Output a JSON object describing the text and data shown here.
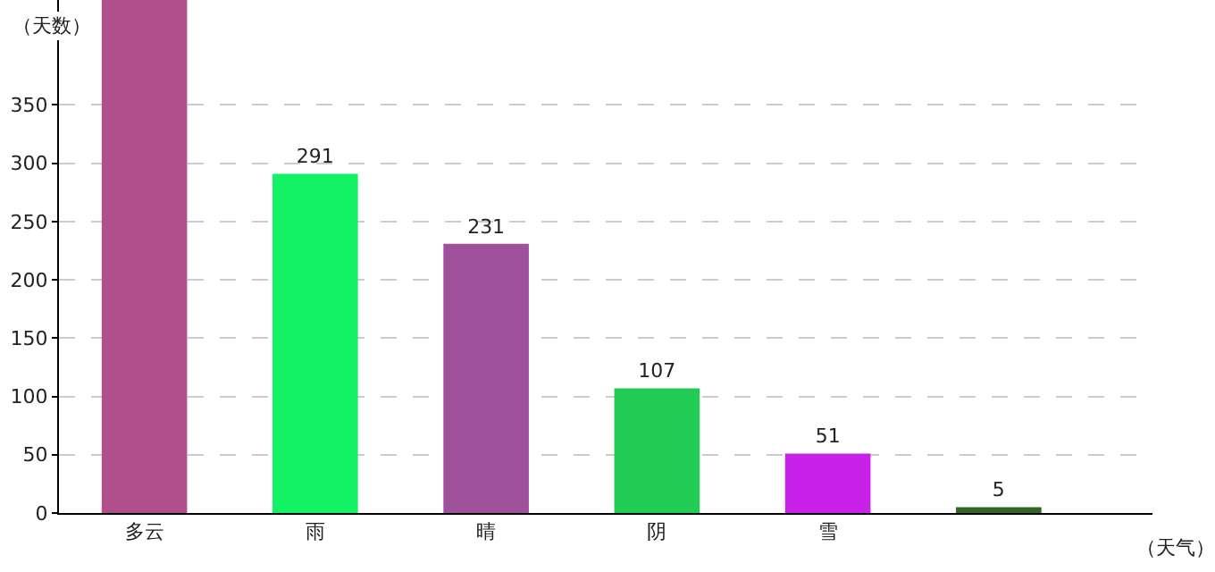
{
  "chart_data": {
    "type": "bar",
    "xlabel": "（天气）",
    "ylabel": "（天数）",
    "categories": [
      "多云",
      "雨",
      "晴",
      "阴",
      "雪",
      null
    ],
    "values": [
      440,
      291,
      231,
      107,
      51,
      5
    ],
    "value_labels": [
      null,
      "291",
      "231",
      "107",
      "51",
      "5"
    ],
    "colors": [
      "#b14f8c",
      "#13f263",
      "#a0519c",
      "#22cc55",
      "#c822e8",
      "#336622"
    ],
    "ylim": [
      0,
      440
    ],
    "yticks": [
      0,
      50,
      100,
      150,
      200,
      250,
      300,
      350
    ],
    "grid": "y",
    "legend": false
  }
}
